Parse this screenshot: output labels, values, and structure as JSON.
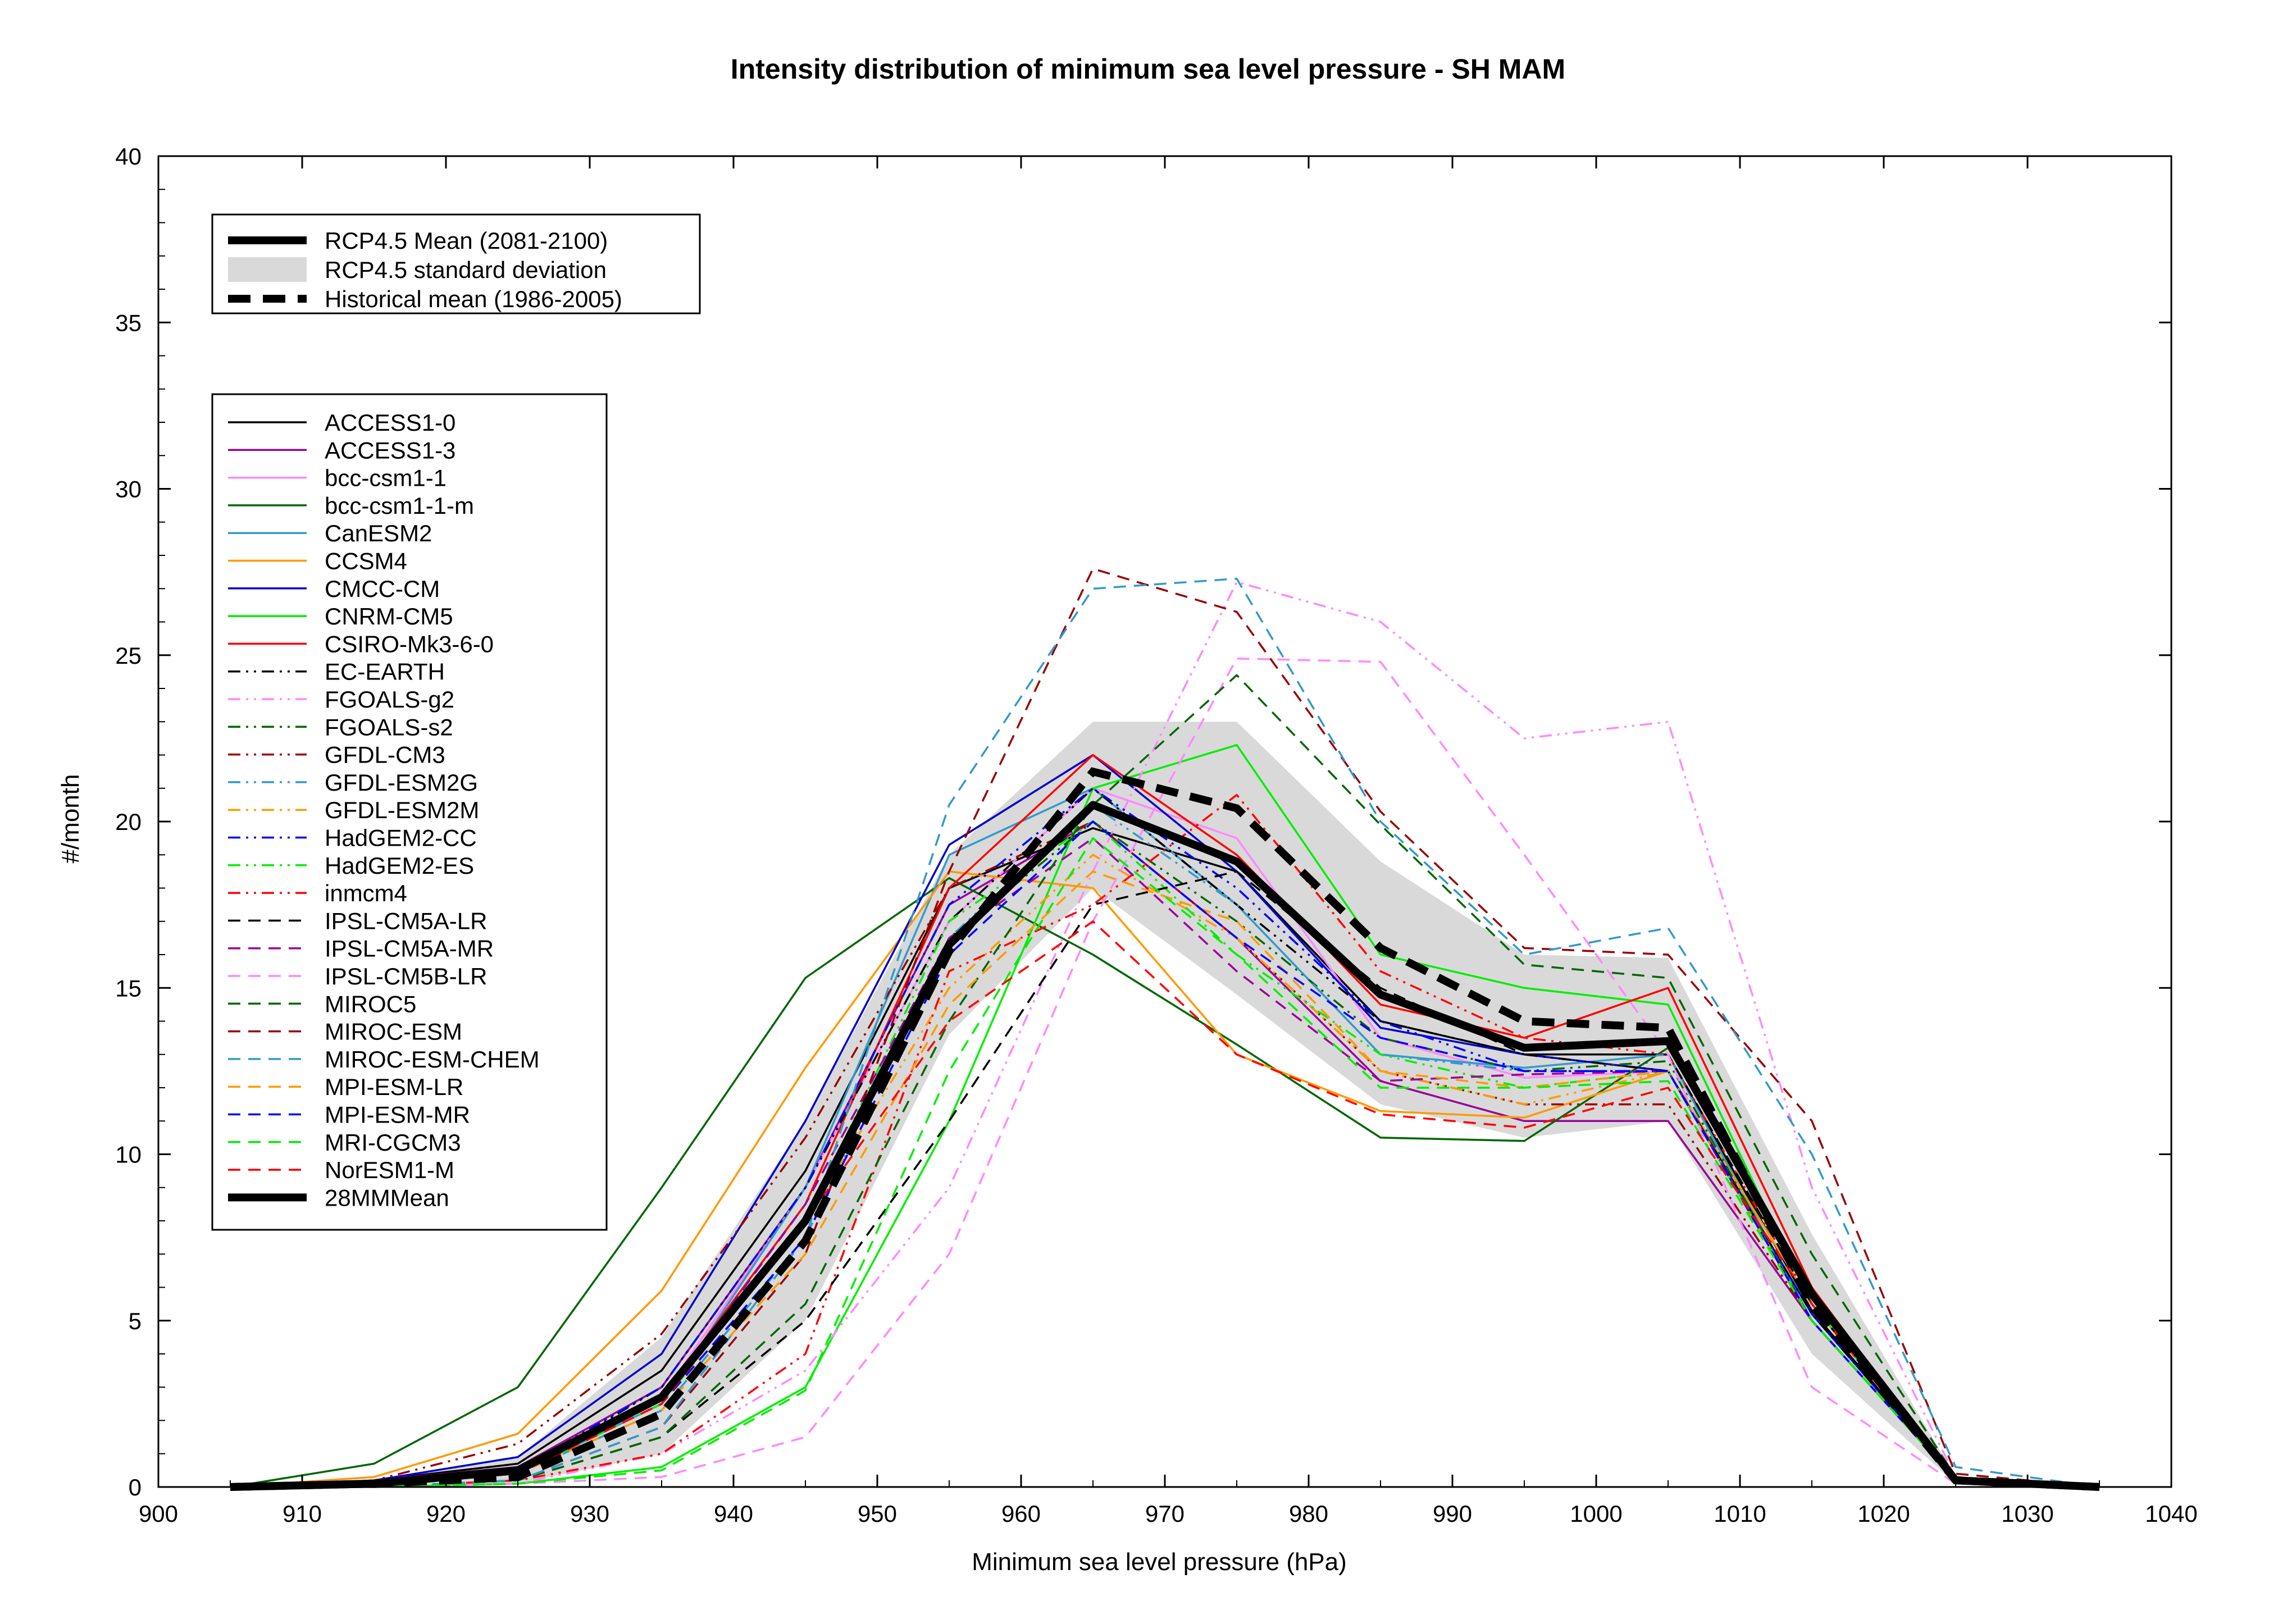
{
  "chart_data": {
    "type": "line",
    "title": "Intensity distribution of minimum sea level pressure - SH MAM",
    "xlabel": "Minimum sea level pressure (hPa)",
    "ylabel": "#/month",
    "xlim": [
      900,
      1040
    ],
    "ylim": [
      0,
      40
    ],
    "xticks": [
      900,
      910,
      920,
      930,
      940,
      950,
      960,
      970,
      980,
      990,
      1000,
      1010,
      1020,
      1030,
      1040
    ],
    "yticks": [
      0,
      5,
      10,
      15,
      20,
      25,
      30,
      35,
      40
    ],
    "grid": false,
    "x": [
      905,
      915,
      925,
      935,
      945,
      955,
      965,
      975,
      985,
      995,
      1005,
      1015,
      1025,
      1035
    ],
    "summary_legend": [
      "RCP4.5 Mean (2081-2100)",
      "RCP4.5 standard deviation",
      "Historical mean (1986-2005)"
    ],
    "rcp45_mean": [
      0,
      0.1,
      0.5,
      2.7,
      8.0,
      16.3,
      20.5,
      18.8,
      14.8,
      13.2,
      13.4,
      5.8,
      0.2,
      0
    ],
    "rcp45_std": {
      "upper": [
        0,
        0.2,
        0.9,
        4.5,
        11.0,
        19.0,
        23.0,
        23.0,
        18.8,
        16.0,
        15.9,
        7.6,
        0.3,
        0
      ],
      "lower": [
        0,
        0,
        0.1,
        1.0,
        5.0,
        13.6,
        18.0,
        14.8,
        11.5,
        10.5,
        11.0,
        4.0,
        0.1,
        0
      ]
    },
    "historical_mean": [
      0,
      0.1,
      0.3,
      2.2,
      7.4,
      16.1,
      21.5,
      20.4,
      16.2,
      14.0,
      13.8,
      5.5,
      0.2,
      0
    ],
    "series": [
      {
        "name": "ACCESS1-0",
        "color": "#000000",
        "dash": "solid",
        "values": [
          0,
          0.2,
          0.7,
          3.5,
          9.5,
          18.0,
          19.8,
          18.5,
          14.0,
          13.0,
          13.0,
          5.3,
          0.2,
          0
        ]
      },
      {
        "name": "ACCESS1-3",
        "color": "#990099",
        "dash": "solid",
        "values": [
          0,
          0.2,
          0.6,
          3.0,
          9.0,
          17.5,
          20.0,
          16.5,
          12.2,
          11.0,
          11.0,
          5.0,
          0.2,
          0
        ]
      },
      {
        "name": "bcc-csm1-1",
        "color": "#ff88ff",
        "dash": "solid",
        "values": [
          0,
          0.2,
          0.5,
          2.7,
          9.0,
          17.0,
          21.0,
          19.5,
          13.5,
          12.3,
          12.5,
          5.0,
          0.2,
          0
        ]
      },
      {
        "name": "bcc-csm1-1-m",
        "color": "#006600",
        "dash": "solid",
        "values": [
          0,
          0.7,
          3.0,
          9.0,
          15.3,
          18.3,
          16.0,
          13.3,
          10.5,
          10.4,
          13.2,
          5.8,
          0.2,
          0
        ]
      },
      {
        "name": "CanESM2",
        "color": "#3399cc",
        "dash": "solid",
        "values": [
          0,
          0.1,
          0.4,
          2.5,
          9.0,
          19.0,
          21.0,
          17.5,
          13.0,
          12.6,
          13.0,
          5.0,
          0.2,
          0
        ]
      },
      {
        "name": "CCSM4",
        "color": "#ff9900",
        "dash": "solid",
        "values": [
          0,
          0.3,
          1.6,
          5.9,
          12.6,
          18.5,
          18.0,
          13.0,
          11.3,
          11.1,
          12.5,
          5.5,
          0.2,
          0
        ]
      },
      {
        "name": "CMCC-CM",
        "color": "#0000cc",
        "dash": "solid",
        "values": [
          0,
          0.2,
          0.9,
          4.0,
          11.0,
          19.3,
          22.0,
          18.5,
          13.8,
          13.0,
          12.5,
          5.2,
          0.2,
          0
        ]
      },
      {
        "name": "CNRM-CM5",
        "color": "#00ee00",
        "dash": "solid",
        "values": [
          0,
          0,
          0.1,
          0.6,
          3.0,
          11.0,
          21.0,
          22.3,
          16.0,
          15.0,
          14.5,
          5.5,
          0.2,
          0
        ]
      },
      {
        "name": "CSIRO-Mk3-6-0",
        "color": "#ff0000",
        "dash": "solid",
        "values": [
          0,
          0.1,
          0.5,
          2.7,
          8.5,
          18.0,
          22.0,
          19.0,
          14.5,
          13.5,
          15.0,
          6.0,
          0.2,
          0
        ]
      },
      {
        "name": "EC-EARTH",
        "color": "#000000",
        "dash": "dashdotdot",
        "values": [
          0,
          0.1,
          0.4,
          3.0,
          9.0,
          17.0,
          21.0,
          17.5,
          14.0,
          13.0,
          12.5,
          5.2,
          0.2,
          0
        ]
      },
      {
        "name": "FGOALS-g2",
        "color": "#ff88ff",
        "dash": "dashdotdot",
        "values": [
          0,
          0,
          0.1,
          1.0,
          3.5,
          9.0,
          18.5,
          27.2,
          26.0,
          22.5,
          23.0,
          9.0,
          0.3,
          0
        ]
      },
      {
        "name": "FGOALS-s2",
        "color": "#006600",
        "dash": "dashdotdot",
        "values": [
          0,
          0.1,
          0.4,
          2.5,
          8.0,
          16.5,
          20.0,
          17.0,
          13.5,
          12.5,
          12.8,
          5.0,
          0.2,
          0
        ]
      },
      {
        "name": "GFDL-CM3",
        "color": "#990000",
        "dash": "dashdotdot",
        "values": [
          0,
          0.2,
          1.3,
          4.6,
          10.5,
          18.0,
          20.0,
          16.5,
          12.5,
          11.5,
          11.5,
          5.0,
          0.2,
          0
        ]
      },
      {
        "name": "GFDL-ESM2G",
        "color": "#3399cc",
        "dash": "dashdotdot",
        "values": [
          0,
          0.1,
          0.4,
          2.3,
          7.5,
          16.5,
          20.5,
          17.5,
          13.0,
          12.5,
          12.5,
          5.0,
          0.2,
          0
        ]
      },
      {
        "name": "GFDL-ESM2M",
        "color": "#ff9900",
        "dash": "dashdotdot",
        "values": [
          0,
          0.1,
          0.4,
          2.5,
          8.0,
          15.0,
          19.0,
          16.5,
          12.5,
          11.5,
          12.5,
          5.0,
          0.2,
          0
        ]
      },
      {
        "name": "HadGEM2-CC",
        "color": "#0000ff",
        "dash": "dashdotdot",
        "values": [
          0,
          0.1,
          0.5,
          3.0,
          9.0,
          17.5,
          21.0,
          18.0,
          14.0,
          12.5,
          12.5,
          5.0,
          0.2,
          0
        ]
      },
      {
        "name": "HadGEM2-ES",
        "color": "#00ee00",
        "dash": "dashdotdot",
        "values": [
          0,
          0.1,
          0.4,
          2.5,
          8.0,
          17.0,
          20.0,
          16.0,
          13.0,
          12.0,
          12.5,
          5.0,
          0.2,
          0
        ]
      },
      {
        "name": "inmcm4",
        "color": "#ff0000",
        "dash": "dashdotdot",
        "values": [
          0,
          0,
          0.2,
          1.0,
          4.0,
          15.5,
          17.5,
          20.8,
          15.5,
          13.5,
          13.0,
          5.5,
          0.2,
          0
        ]
      },
      {
        "name": "IPSL-CM5A-LR",
        "color": "#000000",
        "dash": "dashed",
        "values": [
          0,
          0,
          0.2,
          1.5,
          5.0,
          11.0,
          17.5,
          18.5,
          15.0,
          13.0,
          13.0,
          5.5,
          0.2,
          0
        ]
      },
      {
        "name": "IPSL-CM5A-MR",
        "color": "#990099",
        "dash": "dashed",
        "values": [
          0,
          0.1,
          0.4,
          2.6,
          8.5,
          16.5,
          19.5,
          15.5,
          12.2,
          12.4,
          12.5,
          5.0,
          0.2,
          0
        ]
      },
      {
        "name": "IPSL-CM5B-LR",
        "color": "#ff88ff",
        "dash": "dashed",
        "values": [
          0,
          0,
          0.1,
          0.3,
          1.5,
          7.0,
          17.0,
          24.9,
          24.8,
          19.0,
          13.0,
          3.0,
          0.1,
          0
        ]
      },
      {
        "name": "MIROC5",
        "color": "#006600",
        "dash": "dashed",
        "values": [
          0,
          0,
          0.2,
          1.5,
          5.5,
          14.0,
          20.5,
          24.4,
          19.9,
          15.7,
          15.3,
          7.0,
          0.3,
          0
        ]
      },
      {
        "name": "MIROC-ESM",
        "color": "#990000",
        "dash": "dashed",
        "values": [
          0,
          0,
          0.2,
          1.8,
          7.0,
          18.5,
          27.6,
          26.3,
          20.3,
          16.2,
          16.0,
          11.0,
          0.4,
          0
        ]
      },
      {
        "name": "MIROC-ESM-CHEM",
        "color": "#3399cc",
        "dash": "dashed",
        "values": [
          0,
          0,
          0.2,
          1.8,
          7.5,
          20.5,
          27.0,
          27.3,
          20.0,
          16.0,
          16.8,
          10.0,
          0.6,
          0
        ]
      },
      {
        "name": "MPI-ESM-LR",
        "color": "#ff9900",
        "dash": "dashed",
        "values": [
          0,
          0.1,
          0.4,
          2.3,
          7.0,
          14.5,
          18.5,
          17.0,
          12.5,
          12.0,
          12.5,
          5.0,
          0.2,
          0
        ]
      },
      {
        "name": "MPI-ESM-MR",
        "color": "#0000ff",
        "dash": "dashed",
        "values": [
          0,
          0.1,
          0.4,
          2.5,
          7.5,
          16.0,
          20.0,
          16.5,
          13.5,
          12.5,
          12.5,
          5.0,
          0.2,
          0
        ]
      },
      {
        "name": "MRI-CGCM3",
        "color": "#00ee00",
        "dash": "dashed",
        "values": [
          0,
          0,
          0.1,
          0.5,
          2.9,
          12.5,
          19.5,
          16.0,
          12.0,
          12.0,
          12.2,
          5.0,
          0.2,
          0
        ]
      },
      {
        "name": "NorESM1-M",
        "color": "#ff0000",
        "dash": "dashed",
        "values": [
          0,
          0.1,
          0.4,
          2.5,
          8.0,
          14.0,
          17.0,
          13.0,
          11.2,
          10.8,
          12.0,
          5.5,
          0.2,
          0
        ]
      },
      {
        "name": "28MMMean",
        "color": "#000000",
        "dash": "thick",
        "values": [
          0,
          0.1,
          0.5,
          2.7,
          8.0,
          16.3,
          20.5,
          18.8,
          14.8,
          13.2,
          13.4,
          5.8,
          0.2,
          0
        ]
      }
    ]
  }
}
